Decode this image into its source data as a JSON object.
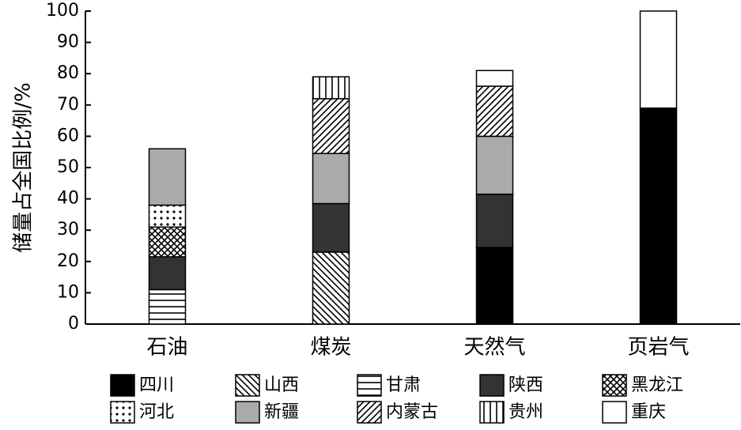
{
  "chart_data": {
    "type": "stacked_bar",
    "ylabel": "储量占全国比例/%",
    "categories": [
      "石油",
      "煤炭",
      "天然气",
      "页岩气"
    ],
    "series": [
      {
        "name": "四川",
        "color": "#000000",
        "pattern": "solid",
        "values": [
          null,
          null,
          24.5,
          69
        ]
      },
      {
        "name": "山西",
        "color": "#ffffff",
        "pattern": "backslash",
        "values": [
          null,
          23,
          null,
          null
        ]
      },
      {
        "name": "甘肃",
        "color": "#ffffff",
        "pattern": "horizontal",
        "values": [
          11,
          null,
          null,
          null
        ]
      },
      {
        "name": "陕西",
        "color": "#333333",
        "pattern": "solid",
        "values": [
          10.5,
          15.5,
          17,
          null
        ]
      },
      {
        "name": "黑龙江",
        "color": "#ffffff",
        "pattern": "crosshatch",
        "values": [
          9.5,
          null,
          null,
          null
        ]
      },
      {
        "name": "河北",
        "color": "#ffffff",
        "pattern": "dots",
        "values": [
          7,
          null,
          null,
          null
        ]
      },
      {
        "name": "新疆",
        "color": "#aaaaaa",
        "pattern": "solid",
        "values": [
          18,
          16,
          18.5,
          null
        ]
      },
      {
        "name": "内蒙古",
        "color": "#ffffff",
        "pattern": "slash",
        "values": [
          null,
          17.5,
          16,
          null
        ]
      },
      {
        "name": "贵州",
        "color": "#ffffff",
        "pattern": "vertical",
        "values": [
          null,
          7,
          null,
          null
        ]
      },
      {
        "name": "重庆",
        "color": "#ffffff",
        "pattern": "solid",
        "values": [
          null,
          null,
          5,
          31
        ]
      }
    ],
    "ylim": [
      0,
      100
    ],
    "yticks": [
      0,
      10,
      20,
      30,
      40,
      50,
      60,
      70,
      80,
      90,
      100
    ],
    "grid": false
  }
}
